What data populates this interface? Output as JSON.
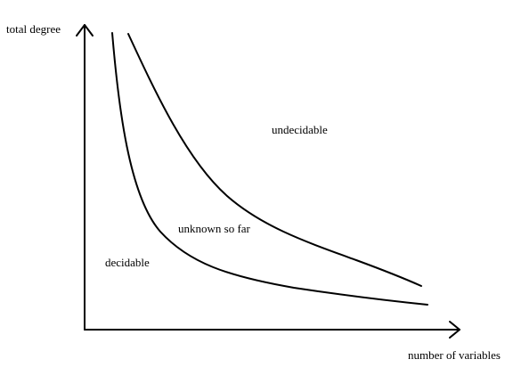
{
  "axes": {
    "y_label": "total degree",
    "x_label": "number of variables"
  },
  "regions": {
    "undecidable": "undecidable",
    "unknown": "unknown so far",
    "decidable": "decidable"
  },
  "colors": {
    "line": "#000000",
    "background": "#ffffff"
  }
}
